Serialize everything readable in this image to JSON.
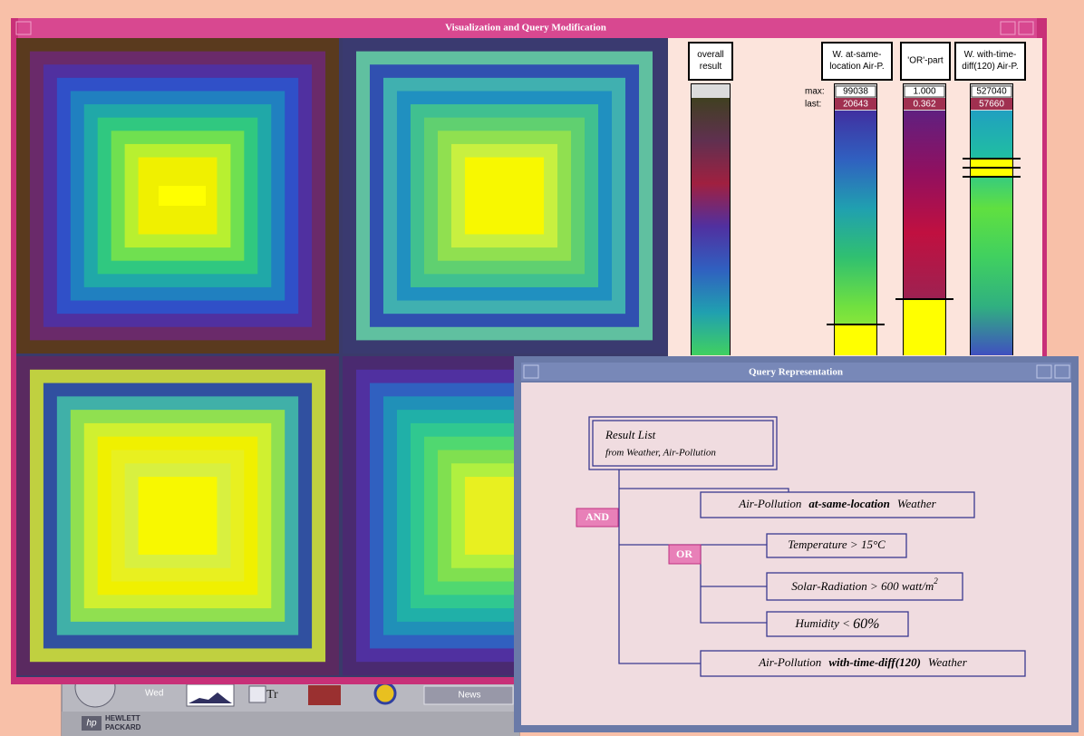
{
  "main_window": {
    "title": "Visualization and Query Modification",
    "sliders": [
      {
        "label": [
          "overall",
          "result"
        ]
      },
      {
        "label": [
          "W. at-same-",
          "location Air-P."
        ],
        "max": "99038",
        "last": "20643"
      },
      {
        "label": [
          "'OR'-part"
        ],
        "max": "1.000",
        "last": "0.362"
      },
      {
        "label": [
          "W. with-time-",
          "diff(120) Air-P."
        ],
        "max": "527040",
        "last": "57660"
      }
    ],
    "max_label": "max:",
    "last_label": "last:"
  },
  "query_window": {
    "title": "Query Representation",
    "result_list": {
      "title": "Result List",
      "subtitle": "from Weather, Air-Pollution"
    },
    "and_label": "AND",
    "or_label": "OR",
    "conditions": [
      {
        "parts": [
          "Air-Pollution",
          "at-same-location",
          "Weather"
        ]
      },
      {
        "parts": [
          "Temperature > 15°C"
        ]
      },
      {
        "parts": [
          "Solar-Radiation > 600 watt/m",
          "2"
        ]
      },
      {
        "parts": [
          "Humidity < ",
          "60%"
        ]
      },
      {
        "parts": [
          "Air-Pollution",
          "with-time-diff(120)",
          "Weather"
        ]
      }
    ]
  },
  "taskbar": {
    "day": "Wed",
    "news": "News",
    "brand": [
      "HEWLETT",
      "PACKARD"
    ],
    "logo": "hp",
    "font_icon": "Tr"
  }
}
